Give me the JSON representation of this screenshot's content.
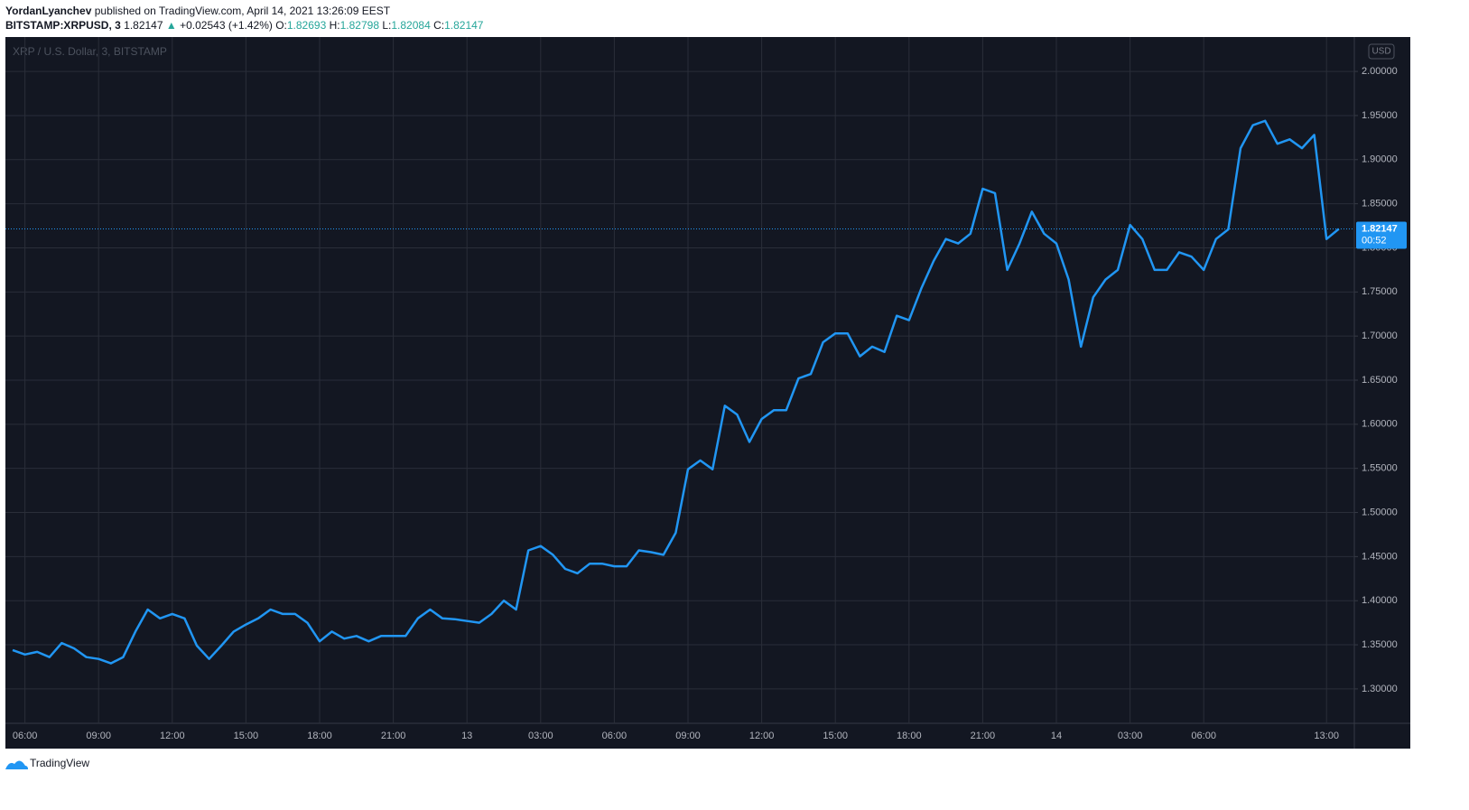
{
  "header": {
    "author": "YordanLyanchev",
    "published": "published on TradingView.com, April 14, 2021 13:26:09 EEST",
    "symbol": "BITSTAMP:XRPUSD, 3",
    "last": "1.82147",
    "change": "+0.02543 (+1.42%)",
    "ohlc": [
      {
        "label": "O:",
        "value": "1.82693"
      },
      {
        "label": "H:",
        "value": "1.82798"
      },
      {
        "label": "L:",
        "value": "1.82084"
      },
      {
        "label": "C:",
        "value": "1.82147"
      }
    ]
  },
  "chart_data": {
    "type": "line",
    "watermark": "XRP / U.S. Dollar, 3, BITSTAMP",
    "currency": "USD",
    "color": "#2196f3",
    "grid": true,
    "categories": [
      null,
      "06:00",
      null,
      null,
      null,
      null,
      null,
      "09:00",
      null,
      null,
      null,
      null,
      null,
      "12:00",
      null,
      null,
      null,
      null,
      null,
      "15:00",
      null,
      null,
      null,
      null,
      null,
      "18:00",
      null,
      null,
      null,
      null,
      null,
      "21:00",
      null,
      null,
      null,
      null,
      null,
      "13",
      null,
      null,
      null,
      null,
      null,
      "03:00",
      null,
      null,
      null,
      null,
      null,
      "06:00",
      null,
      null,
      null,
      null,
      null,
      "09:00",
      null,
      null,
      null,
      null,
      null,
      "12:00",
      null,
      null,
      null,
      null,
      null,
      "15:00",
      null,
      null,
      null,
      null,
      null,
      "18:00",
      null,
      null,
      null,
      null,
      null,
      "21:00",
      null,
      null,
      null,
      null,
      null,
      "14",
      null,
      null,
      null,
      null,
      null,
      "03:00",
      null,
      null,
      null,
      null,
      null,
      "06:00",
      null,
      null,
      null,
      null,
      null,
      null,
      null,
      null,
      null,
      "13:00",
      null
    ],
    "values": [
      1.344,
      1.339,
      1.342,
      1.336,
      1.352,
      1.346,
      1.336,
      1.334,
      1.329,
      1.336,
      1.365,
      1.39,
      1.38,
      1.385,
      1.38,
      1.349,
      1.334,
      1.349,
      1.365,
      1.373,
      1.38,
      1.39,
      1.385,
      1.385,
      1.375,
      1.354,
      1.365,
      1.357,
      1.36,
      1.354,
      1.36,
      1.36,
      1.36,
      1.38,
      1.39,
      1.38,
      1.379,
      1.377,
      1.375,
      1.385,
      1.4,
      1.39,
      1.457,
      1.462,
      1.452,
      1.436,
      1.431,
      1.442,
      1.442,
      1.439,
      1.439,
      1.457,
      1.455,
      1.452,
      1.477,
      1.549,
      1.559,
      1.549,
      1.621,
      1.611,
      1.58,
      1.606,
      1.616,
      1.616,
      1.652,
      1.657,
      1.693,
      1.703,
      1.703,
      1.677,
      1.688,
      1.682,
      1.723,
      1.718,
      1.754,
      1.785,
      1.81,
      1.805,
      1.816,
      1.867,
      1.862,
      1.775,
      1.805,
      1.841,
      1.816,
      1.805,
      1.764,
      1.688,
      1.744,
      1.764,
      1.775,
      1.826,
      1.81,
      1.775,
      1.775,
      1.795,
      1.79,
      1.775,
      1.81,
      1.821,
      1.913,
      1.939,
      1.944,
      1.918,
      1.923,
      1.913,
      1.928,
      1.81,
      1.82147
    ],
    "ylim": [
      1.261,
      2.039
    ],
    "yticks": [
      {
        "value": 1.3,
        "label": "1.30000"
      },
      {
        "value": 1.35,
        "label": "1.35000"
      },
      {
        "value": 1.4,
        "label": "1.40000"
      },
      {
        "value": 1.45,
        "label": "1.45000"
      },
      {
        "value": 1.5,
        "label": "1.50000"
      },
      {
        "value": 1.55,
        "label": "1.55000"
      },
      {
        "value": 1.6,
        "label": "1.60000"
      },
      {
        "value": 1.65,
        "label": "1.65000"
      },
      {
        "value": 1.7,
        "label": "1.70000"
      },
      {
        "value": 1.75,
        "label": "1.75000"
      },
      {
        "value": 1.8,
        "label": "1.80000"
      },
      {
        "value": 1.85,
        "label": "1.85000"
      },
      {
        "value": 1.9,
        "label": "1.90000"
      },
      {
        "value": 1.95,
        "label": "1.95000"
      },
      {
        "value": 2.0,
        "label": "2.00000"
      }
    ],
    "last_price": {
      "value": 1.82147,
      "countdown": "00:52"
    },
    "footer": "TradingView"
  }
}
